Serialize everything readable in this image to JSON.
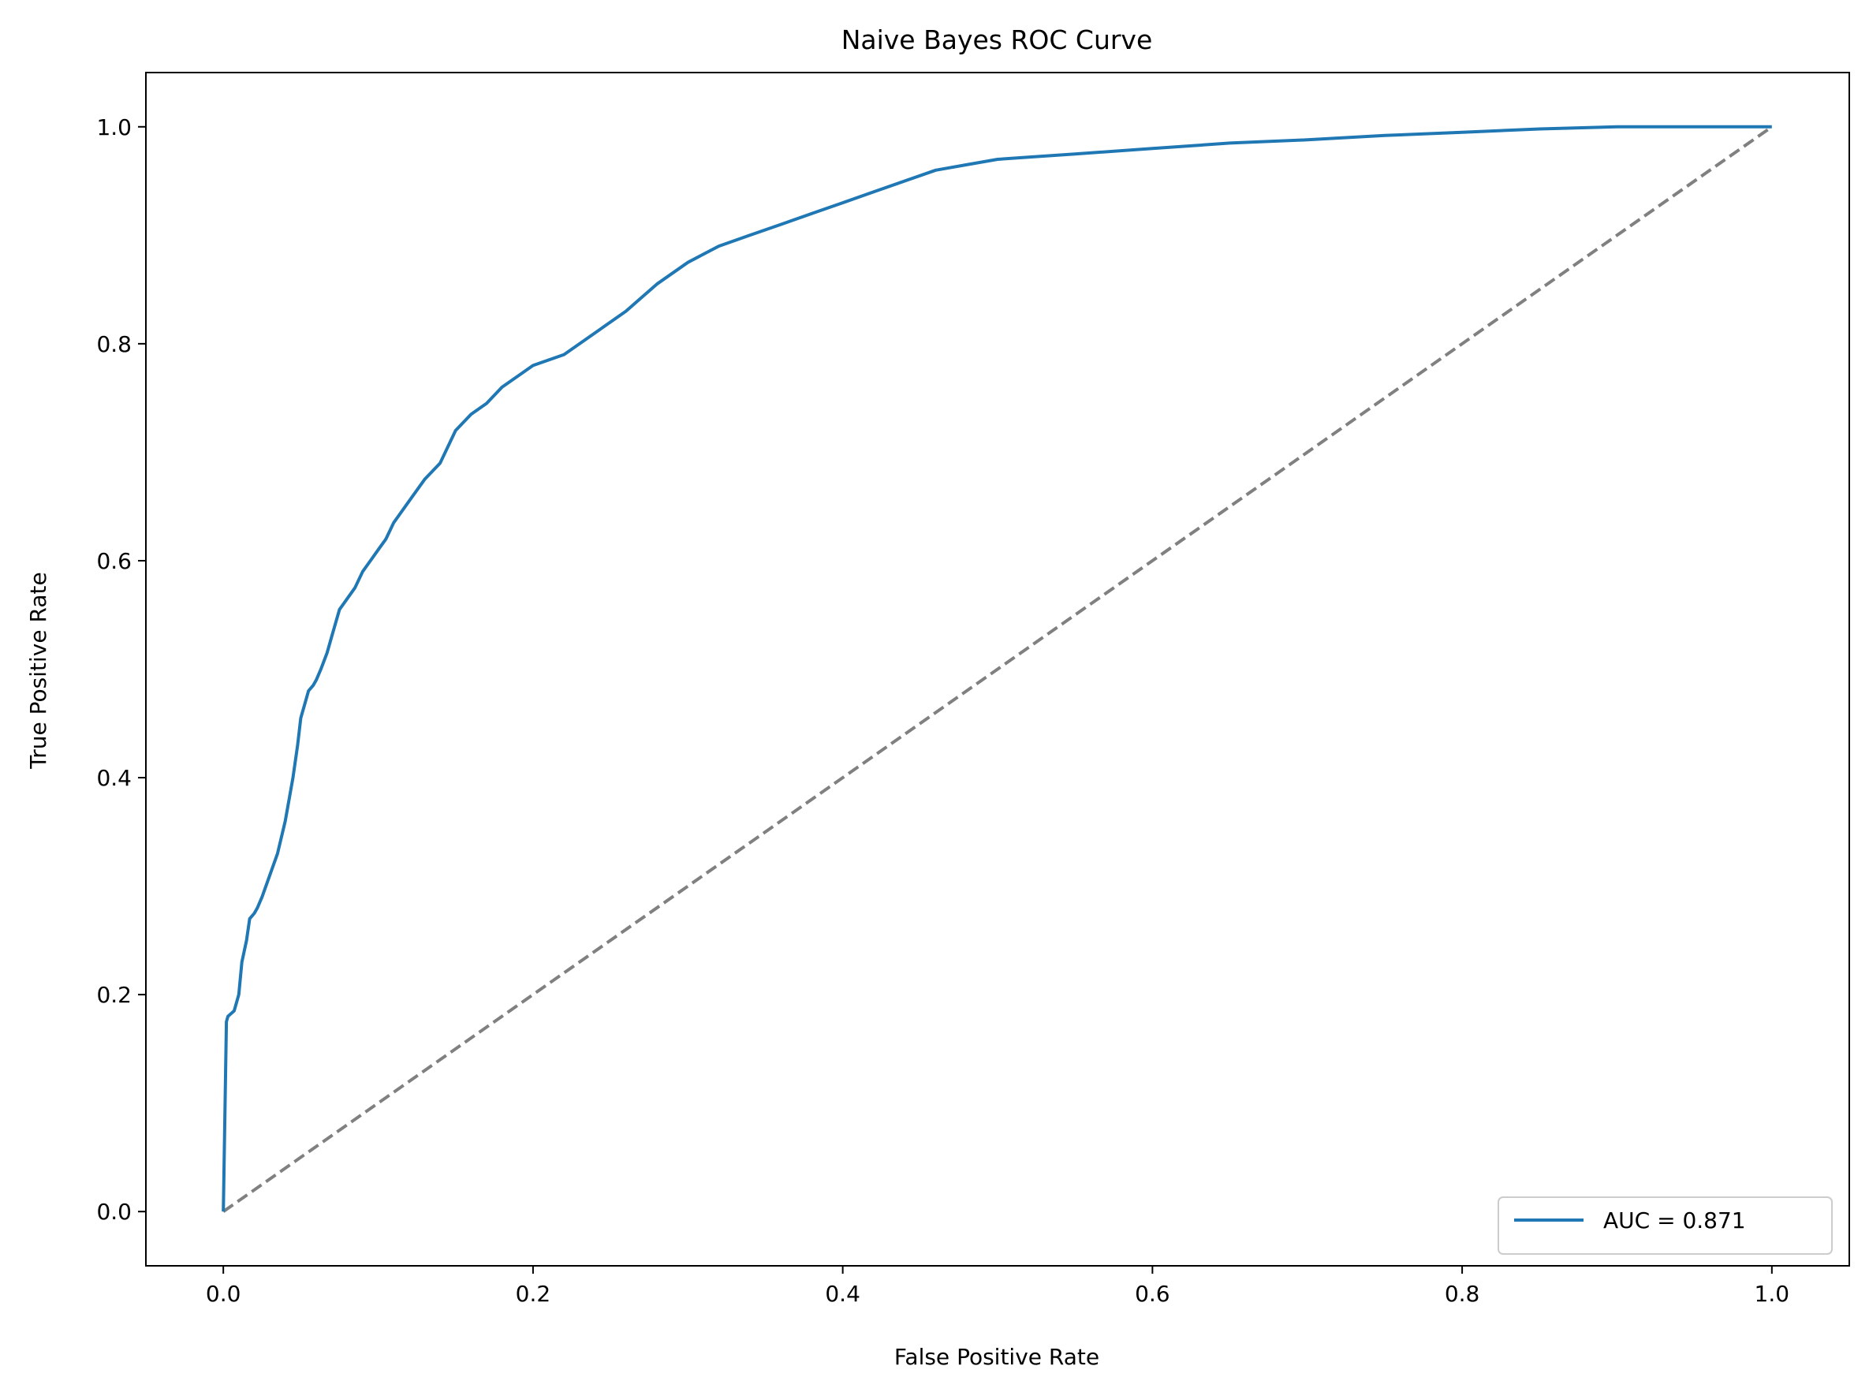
{
  "chart_data": {
    "type": "line",
    "title": "Naive Bayes ROC Curve",
    "xlabel": "False Positive Rate",
    "ylabel": "True Positive Rate",
    "xlim": [
      -0.05,
      1.05
    ],
    "ylim": [
      -0.05,
      1.05
    ],
    "xticks": [
      0.0,
      0.2,
      0.4,
      0.6,
      0.8,
      1.0
    ],
    "xtick_labels": [
      "0.0",
      "0.2",
      "0.4",
      "0.6",
      "0.8",
      "1.0"
    ],
    "yticks": [
      0.0,
      0.2,
      0.4,
      0.6,
      0.8,
      1.0
    ],
    "ytick_labels": [
      "0.0",
      "0.2",
      "0.4",
      "0.6",
      "0.8",
      "1.0"
    ],
    "grid": false,
    "legend_position": "lower-right",
    "series": [
      {
        "name": "AUC = 0.871",
        "color": "#1f77b4",
        "style": "solid",
        "x": [
          0.0,
          0.002,
          0.003,
          0.007,
          0.01,
          0.012,
          0.015,
          0.017,
          0.02,
          0.022,
          0.025,
          0.03,
          0.035,
          0.04,
          0.045,
          0.048,
          0.05,
          0.053,
          0.055,
          0.058,
          0.06,
          0.063,
          0.067,
          0.07,
          0.075,
          0.08,
          0.085,
          0.09,
          0.095,
          0.1,
          0.105,
          0.11,
          0.12,
          0.13,
          0.14,
          0.15,
          0.16,
          0.17,
          0.18,
          0.19,
          0.2,
          0.22,
          0.24,
          0.26,
          0.28,
          0.3,
          0.32,
          0.34,
          0.36,
          0.38,
          0.4,
          0.42,
          0.44,
          0.46,
          0.48,
          0.5,
          0.52,
          0.55,
          0.6,
          0.65,
          0.7,
          0.75,
          0.8,
          0.85,
          0.9,
          1.0
        ],
        "y": [
          0.0,
          0.175,
          0.18,
          0.185,
          0.2,
          0.23,
          0.25,
          0.27,
          0.275,
          0.28,
          0.29,
          0.31,
          0.33,
          0.36,
          0.4,
          0.43,
          0.455,
          0.47,
          0.48,
          0.485,
          0.49,
          0.5,
          0.515,
          0.53,
          0.555,
          0.565,
          0.575,
          0.59,
          0.6,
          0.61,
          0.62,
          0.635,
          0.655,
          0.675,
          0.69,
          0.72,
          0.735,
          0.745,
          0.76,
          0.77,
          0.78,
          0.79,
          0.81,
          0.83,
          0.855,
          0.875,
          0.89,
          0.9,
          0.91,
          0.92,
          0.93,
          0.94,
          0.95,
          0.96,
          0.965,
          0.97,
          0.972,
          0.975,
          0.98,
          0.985,
          0.988,
          0.992,
          0.995,
          0.998,
          1.0,
          1.0
        ]
      },
      {
        "color": "#808080",
        "style": "dashed",
        "x": [
          0.0,
          1.0
        ],
        "y": [
          0.0,
          1.0
        ]
      }
    ]
  }
}
